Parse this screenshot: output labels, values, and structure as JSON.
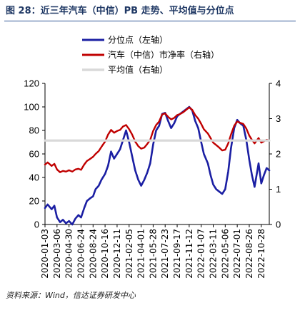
{
  "source": "资料来源：Wind，信达证券研发中心",
  "chart_data": {
    "type": "line",
    "title": "图 28：近三年汽车（中信）PB 走势、平均值与分位点",
    "legend_position": "top",
    "grid": false,
    "x_tick_labels": [
      "2020-01-03",
      "2020-03-06",
      "2020-04-30",
      "2020-06-24",
      "2020-08-24",
      "2020-10-16",
      "2020-12-11",
      "2021-02-05",
      "2021-04-01",
      "2021-05-28",
      "2021-07-23",
      "2021-09-17",
      "2021-11-12",
      "2022-01-07",
      "2022-03-11",
      "2022-05-06",
      "2022-07-01",
      "2022-08-26",
      "2022-10-28"
    ],
    "x": [
      "2020-01-03",
      "2020-01-17",
      "2020-02-07",
      "2020-02-21",
      "2020-03-06",
      "2020-03-20",
      "2020-04-02",
      "2020-04-16",
      "2020-04-30",
      "2020-05-15",
      "2020-05-29",
      "2020-06-12",
      "2020-06-24",
      "2020-07-10",
      "2020-07-24",
      "2020-08-07",
      "2020-08-24",
      "2020-09-04",
      "2020-09-18",
      "2020-09-30",
      "2020-10-16",
      "2020-10-30",
      "2020-11-13",
      "2020-11-27",
      "2020-12-11",
      "2020-12-25",
      "2021-01-08",
      "2021-01-22",
      "2021-02-05",
      "2021-02-19",
      "2021-03-05",
      "2021-03-19",
      "2021-04-01",
      "2021-04-16",
      "2021-04-30",
      "2021-05-14",
      "2021-05-28",
      "2021-06-11",
      "2021-06-25",
      "2021-07-09",
      "2021-07-23",
      "2021-08-06",
      "2021-08-20",
      "2021-09-03",
      "2021-09-17",
      "2021-09-30",
      "2021-10-15",
      "2021-10-29",
      "2021-11-12",
      "2021-11-26",
      "2021-12-10",
      "2021-12-24",
      "2022-01-07",
      "2022-01-21",
      "2022-02-11",
      "2022-02-25",
      "2022-03-11",
      "2022-03-25",
      "2022-04-08",
      "2022-04-22",
      "2022-05-06",
      "2022-05-20",
      "2022-06-02",
      "2022-06-17",
      "2022-07-01",
      "2022-07-15",
      "2022-07-29",
      "2022-08-12",
      "2022-08-26",
      "2022-09-09",
      "2022-09-23",
      "2022-10-14",
      "2022-10-28",
      "2022-11-11",
      "2022-11-25",
      "2022-12-09"
    ],
    "y_left": {
      "lim": [
        0,
        120
      ],
      "ticks": [
        0,
        20,
        40,
        60,
        80,
        100,
        120
      ]
    },
    "y_right": {
      "lim": [
        0,
        4
      ],
      "ticks": [
        0,
        1,
        2,
        3,
        4
      ]
    },
    "series": [
      {
        "name": "分位点（左轴）",
        "axis": "left",
        "color": "#1b1fa3",
        "values": [
          14,
          17,
          13,
          16,
          6,
          2,
          4,
          1,
          3,
          0,
          5,
          8,
          6,
          14,
          20,
          22,
          24,
          30,
          33,
          38,
          43,
          50,
          62,
          56,
          60,
          64,
          72,
          80,
          70,
          58,
          46,
          38,
          33,
          38,
          44,
          52,
          68,
          80,
          84,
          94,
          95,
          88,
          82,
          86,
          92,
          94,
          96,
          98,
          100,
          97,
          88,
          82,
          70,
          60,
          52,
          42,
          34,
          30,
          28,
          26,
          30,
          45,
          65,
          82,
          89,
          86,
          84,
          72,
          55,
          42,
          32,
          52,
          35,
          42,
          48,
          46
        ]
      },
      {
        "name": "汽车（中信）市净率（右轴）",
        "axis": "right",
        "color": "#c00000",
        "values": [
          1.7,
          1.76,
          1.66,
          1.72,
          1.56,
          1.48,
          1.52,
          1.5,
          1.54,
          1.5,
          1.56,
          1.58,
          1.55,
          1.7,
          1.8,
          1.85,
          1.92,
          2.0,
          2.08,
          2.2,
          2.35,
          2.55,
          2.68,
          2.6,
          2.65,
          2.68,
          2.78,
          2.82,
          2.7,
          2.55,
          2.35,
          2.22,
          2.15,
          2.18,
          2.28,
          2.4,
          2.65,
          2.82,
          2.92,
          3.12,
          3.15,
          3.05,
          2.98,
          3.02,
          3.1,
          3.13,
          3.18,
          3.25,
          3.32,
          3.25,
          3.1,
          3.0,
          2.85,
          2.7,
          2.58,
          2.45,
          2.32,
          2.25,
          2.18,
          2.1,
          2.12,
          2.3,
          2.55,
          2.8,
          2.92,
          2.88,
          2.85,
          2.72,
          2.52,
          2.4,
          2.3,
          2.45,
          2.32,
          2.36,
          2.4,
          2.38
        ]
      },
      {
        "name": "平均值（右轴）",
        "axis": "right",
        "color": "#d9d9d9",
        "value": 2.38
      }
    ]
  }
}
